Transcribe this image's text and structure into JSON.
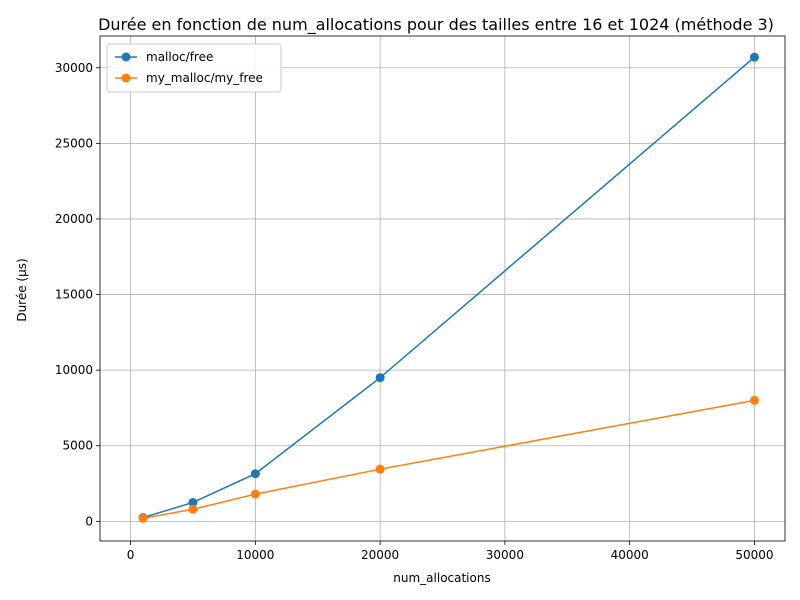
{
  "chart_data": {
    "type": "line",
    "title": "Durée en fonction de num_allocations pour des tailles entre 16 et 1024 (méthode 3)",
    "xlabel": "num_allocations",
    "ylabel": "Durée (µs)",
    "xlim": [
      -2450,
      52450
    ],
    "ylim": [
      -1300,
      32100
    ],
    "xticks": [
      0,
      10000,
      20000,
      30000,
      40000,
      50000
    ],
    "xtick_labels": [
      "0",
      "10000",
      "20000",
      "30000",
      "40000",
      "50000"
    ],
    "yticks": [
      0,
      5000,
      10000,
      15000,
      20000,
      25000,
      30000
    ],
    "ytick_labels": [
      "0",
      "5000",
      "10000",
      "15000",
      "20000",
      "25000",
      "30000"
    ],
    "grid": true,
    "legend_position": "top-left",
    "x": [
      1000,
      5000,
      10000,
      20000,
      50000
    ],
    "series": [
      {
        "name": "malloc/free",
        "color": "#1f77b4",
        "marker": "circle",
        "values": [
          250,
          1250,
          3150,
          9500,
          30700
        ]
      },
      {
        "name": "my_malloc/my_free",
        "color": "#ff7f0e",
        "marker": "circle",
        "values": [
          200,
          800,
          1800,
          3450,
          8000
        ]
      }
    ]
  }
}
